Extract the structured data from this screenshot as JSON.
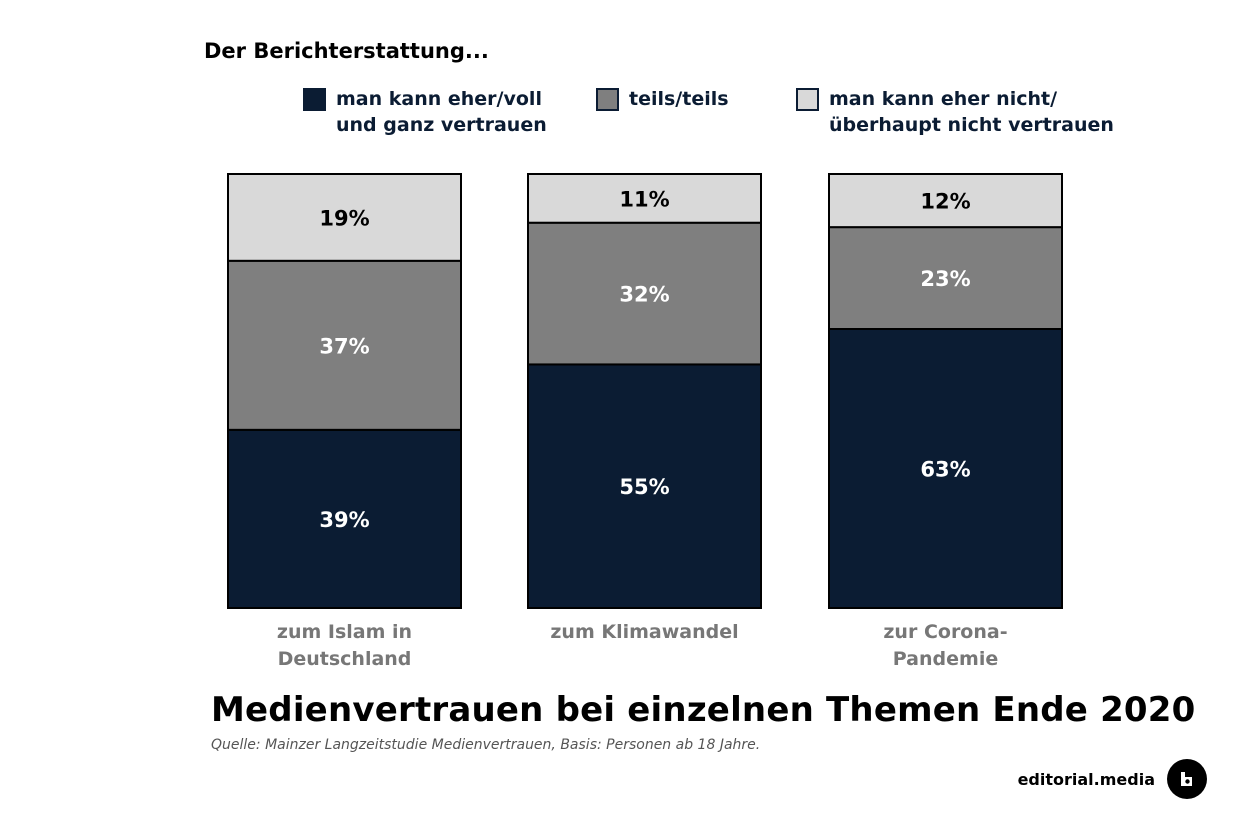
{
  "intro_text": "Der Berichterstattung...",
  "legend": [
    {
      "label": "man kann eher/voll\nund ganz vertrauen",
      "color": "#0b1c33"
    },
    {
      "label": "teils/teils",
      "color": "#7f7f7f"
    },
    {
      "label": "man kann eher nicht/\nüberhaupt nicht vertrauen",
      "color": "#d9d9d9"
    }
  ],
  "title": "Medienvertrauen bei einzelnen Themen Ende 2020",
  "source": "Quelle: Mainzer Langzeitstudie Medienvertrauen, Basis: Personen ab 18 Jahre.",
  "brand": {
    "name": "editorial.media"
  },
  "chart_data": {
    "type": "bar",
    "stacked": true,
    "categories": [
      "zum Islam in\nDeutschland",
      "zum Klimawandel",
      "zur Corona-\nPandemie"
    ],
    "series": [
      {
        "name": "man kann eher/voll und ganz vertrauen",
        "values": [
          39,
          55,
          63
        ],
        "labels": [
          "39%",
          "55%",
          "63%"
        ],
        "color": "#0b1c33",
        "text_color": "#ffffff"
      },
      {
        "name": "teils/teils",
        "values": [
          37,
          32,
          23
        ],
        "labels": [
          "37%",
          "32%",
          "23%"
        ],
        "color": "#7f7f7f",
        "text_color": "#ffffff"
      },
      {
        "name": "man kann eher nicht/überhaupt nicht vertrauen",
        "values": [
          19,
          11,
          12
        ],
        "labels": [
          "19%",
          "11%",
          "12%"
        ],
        "color": "#d9d9d9",
        "text_color": "#000000"
      }
    ],
    "value_unit": "%",
    "axes_visible": false,
    "grid": false,
    "legend_position": "top"
  }
}
